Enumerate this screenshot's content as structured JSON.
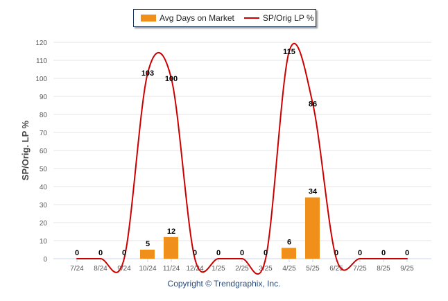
{
  "chart_data": {
    "type": "bar+line",
    "categories": [
      "7/24",
      "8/24",
      "9/24",
      "10/24",
      "11/24",
      "12/24",
      "1/25",
      "2/25",
      "3/25",
      "4/25",
      "5/25",
      "6/25",
      "7/25",
      "8/25",
      "9/25"
    ],
    "series": [
      {
        "name": "Avg Days on Market",
        "type": "bar",
        "color": "#f0901a",
        "values": [
          0,
          0,
          0,
          5,
          12,
          0,
          0,
          0,
          0,
          6,
          34,
          0,
          0,
          0,
          0
        ]
      },
      {
        "name": "SP/Orig LP %",
        "type": "line",
        "color": "#cc0000",
        "values": [
          0,
          0,
          0,
          103,
          100,
          0,
          0,
          0,
          0,
          115,
          86,
          0,
          0,
          0,
          0
        ]
      }
    ],
    "ylabel": "SP/Orig. LP %",
    "xlabel": "",
    "ylim": [
      0,
      120
    ],
    "yticks": [
      0,
      10,
      20,
      30,
      40,
      50,
      60,
      70,
      80,
      90,
      100,
      110,
      120
    ],
    "grid": true,
    "legend_position": "top-center"
  },
  "legend": {
    "bar_label": "Avg Days on Market",
    "line_label": "SP/Orig LP %"
  },
  "credit": "Copyright © Trendgraphix, Inc."
}
